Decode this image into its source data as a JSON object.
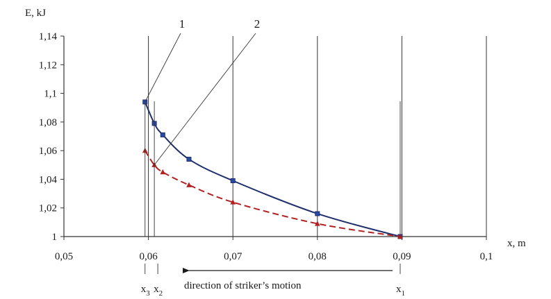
{
  "chart_data": {
    "type": "line",
    "title": "",
    "xlabel": "x, m",
    "ylabel": "E, kJ",
    "xlim": [
      0.05,
      0.1
    ],
    "ylim": [
      1,
      1.14
    ],
    "x_ticks": [
      0.05,
      0.06,
      0.07,
      0.08,
      0.09,
      0.1
    ],
    "x_tick_labels": [
      "0,05",
      "0,06",
      "0,07",
      "0,08",
      "0,09",
      "0,1"
    ],
    "y_ticks": [
      1,
      1.02,
      1.04,
      1.06,
      1.08,
      1.1,
      1.12,
      1.14
    ],
    "y_tick_labels": [
      "1",
      "1,02",
      "1,04",
      "1,06",
      "1,08",
      "1,1",
      "1,12",
      "1,14"
    ],
    "grid": "vertical",
    "series": [
      {
        "name": "1",
        "color": "#1f2f6b",
        "marker": "square",
        "line_style": "solid",
        "x": [
          0.0596,
          0.0607,
          0.0617,
          0.0648,
          0.07,
          0.08,
          0.0898
        ],
        "y": [
          1.094,
          1.079,
          1.071,
          1.054,
          1.039,
          1.016,
          1.0
        ]
      },
      {
        "name": "2",
        "color": "#b22222",
        "marker": "triangle",
        "line_style": "dashed",
        "x": [
          0.0596,
          0.0607,
          0.0617,
          0.0648,
          0.07,
          0.08,
          0.0898
        ],
        "y": [
          1.06,
          1.05,
          1.045,
          1.036,
          1.024,
          1.009,
          1.0
        ]
      }
    ],
    "callouts": [
      {
        "label": "1",
        "target_series": "1"
      },
      {
        "label": "2",
        "target_series": "2"
      }
    ],
    "x_markers": [
      {
        "symbol": "x",
        "subscript": "3",
        "x": 0.0596
      },
      {
        "symbol": "x",
        "subscript": "2",
        "x": 0.0607
      },
      {
        "symbol": "x",
        "subscript": "1",
        "x": 0.0898
      }
    ],
    "annotation": "direction of striker’s motion"
  }
}
